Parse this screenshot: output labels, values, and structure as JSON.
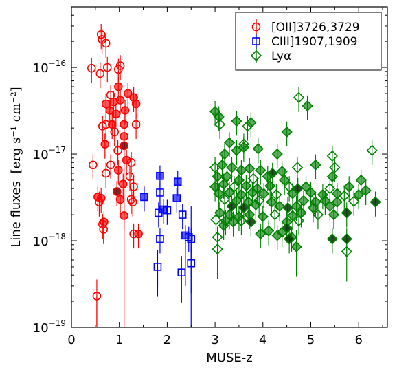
{
  "chart_data": {
    "type": "scatter",
    "xlabel": "MUSE-z",
    "ylabel_main": "Line fluxes",
    "ylabel_units": "[erg s⁻¹ cm⁻²]",
    "xlim": [
      0,
      6.6
    ],
    "ylim": [
      1e-19,
      5e-16
    ],
    "yscale": "log",
    "x_ticks": [
      0,
      1,
      2,
      3,
      4,
      5,
      6
    ],
    "x_tick_labels": [
      "0",
      "1",
      "2",
      "3",
      "4",
      "5",
      "6"
    ],
    "y_ticks": [
      1e-19,
      1e-18,
      1e-17,
      1e-16
    ],
    "y_tick_labels": [
      {
        "base": "10",
        "exp": "−19"
      },
      {
        "base": "10",
        "exp": "−18"
      },
      {
        "base": "10",
        "exp": "−17"
      },
      {
        "base": "10",
        "exp": "−16"
      }
    ],
    "legend_position": "top-right",
    "series": [
      {
        "name": "[OII]3726,3729",
        "color": "#ff0000",
        "marker": "circle",
        "points": [
          {
            "x": 0.62,
            "y": 2.4e-16,
            "f": 0
          },
          {
            "x": 0.64,
            "y": 2.1e-16,
            "f": 0
          },
          {
            "x": 0.72,
            "y": 1.9e-16,
            "f": 0
          },
          {
            "x": 0.42,
            "y": 9.8e-17,
            "f": 0
          },
          {
            "x": 0.6,
            "y": 8.5e-17,
            "f": 0
          },
          {
            "x": 0.75,
            "y": 1e-16,
            "f": 0
          },
          {
            "x": 0.98,
            "y": 9.5e-17,
            "f": 0
          },
          {
            "x": 1.02,
            "y": 1.05e-16,
            "f": 0
          },
          {
            "x": 0.82,
            "y": 4.8e-17,
            "f": 0
          },
          {
            "x": 0.98,
            "y": 6e-17,
            "f": 1
          },
          {
            "x": 1.18,
            "y": 5e-17,
            "f": 1
          },
          {
            "x": 0.72,
            "y": 3.8e-17,
            "f": 1
          },
          {
            "x": 0.88,
            "y": 4e-17,
            "f": 1
          },
          {
            "x": 1.02,
            "y": 4.2e-17,
            "f": 1
          },
          {
            "x": 1.3,
            "y": 4.5e-17,
            "f": 1
          },
          {
            "x": 1.35,
            "y": 3.8e-17,
            "f": 1
          },
          {
            "x": 0.8,
            "y": 3.2e-17,
            "f": 1
          },
          {
            "x": 0.93,
            "y": 2.9e-17,
            "f": 1
          },
          {
            "x": 1.12,
            "y": 3.2e-17,
            "f": 1
          },
          {
            "x": 0.72,
            "y": 2.2e-17,
            "f": 0
          },
          {
            "x": 0.65,
            "y": 2.1e-17,
            "f": 0
          },
          {
            "x": 0.85,
            "y": 2.2e-17,
            "f": 1
          },
          {
            "x": 1.1,
            "y": 2.2e-17,
            "f": 1
          },
          {
            "x": 1.35,
            "y": 2.2e-17,
            "f": 0
          },
          {
            "x": 0.9,
            "y": 1.8e-17,
            "f": 0
          },
          {
            "x": 1.1,
            "y": 1.6e-17,
            "f": 1
          },
          {
            "x": 0.7,
            "y": 1.3e-17,
            "f": 1
          },
          {
            "x": 1.1,
            "y": 1.25e-17,
            "f": 2
          },
          {
            "x": 0.97,
            "y": 1.1e-17,
            "f": 0
          },
          {
            "x": 0.45,
            "y": 7.5e-18,
            "f": 0
          },
          {
            "x": 0.82,
            "y": 7.5e-18,
            "f": 0
          },
          {
            "x": 1.15,
            "y": 8.5e-18,
            "f": 1
          },
          {
            "x": 1.25,
            "y": 8e-18,
            "f": 0
          },
          {
            "x": 0.98,
            "y": 6.5e-18,
            "f": 1
          },
          {
            "x": 0.72,
            "y": 6e-18,
            "f": 0
          },
          {
            "x": 1.22,
            "y": 5.5e-18,
            "f": 0
          },
          {
            "x": 1.08,
            "y": 4.5e-18,
            "f": 1
          },
          {
            "x": 1.3,
            "y": 4.2e-18,
            "f": 0
          },
          {
            "x": 0.95,
            "y": 3.7e-18,
            "f": 2
          },
          {
            "x": 0.55,
            "y": 3.2e-18,
            "f": 1
          },
          {
            "x": 0.62,
            "y": 3.1e-18,
            "f": 1
          },
          {
            "x": 1.02,
            "y": 3e-18,
            "f": 1
          },
          {
            "x": 1.25,
            "y": 3e-18,
            "f": 0
          },
          {
            "x": 0.58,
            "y": 2.8e-18,
            "f": 0
          },
          {
            "x": 1.28,
            "y": 2.8e-18,
            "f": 0
          },
          {
            "x": 1.1,
            "y": 1.95e-18,
            "f": 1
          },
          {
            "x": 0.68,
            "y": 1.65e-18,
            "f": 1
          },
          {
            "x": 0.65,
            "y": 1.55e-18,
            "f": 0
          },
          {
            "x": 0.67,
            "y": 1.35e-18,
            "f": 0
          },
          {
            "x": 1.3,
            "y": 1.2e-18,
            "f": 0
          },
          {
            "x": 1.4,
            "y": 1.2e-18,
            "f": 1
          },
          {
            "x": 0.53,
            "y": 2.3e-19,
            "f": 0
          }
        ]
      },
      {
        "name": "CIII]1907,1909",
        "color": "#0000ff",
        "marker": "square",
        "points": [
          {
            "x": 1.85,
            "y": 5.6e-18,
            "f": 1
          },
          {
            "x": 2.22,
            "y": 4.8e-18,
            "f": 1
          },
          {
            "x": 1.52,
            "y": 3.2e-18,
            "f": 1
          },
          {
            "x": 1.85,
            "y": 3.6e-18,
            "f": 0
          },
          {
            "x": 2.2,
            "y": 3.1e-18,
            "f": 1
          },
          {
            "x": 1.92,
            "y": 2.3e-18,
            "f": 1
          },
          {
            "x": 2.0,
            "y": 2.25e-18,
            "f": 0
          },
          {
            "x": 1.82,
            "y": 2.1e-18,
            "f": 0
          },
          {
            "x": 2.32,
            "y": 2e-18,
            "f": 0
          },
          {
            "x": 2.38,
            "y": 1.15e-18,
            "f": 1
          },
          {
            "x": 2.45,
            "y": 1.1e-18,
            "f": 0
          },
          {
            "x": 2.5,
            "y": 1.05e-18,
            "f": 0
          },
          {
            "x": 1.85,
            "y": 1.05e-18,
            "f": 0
          },
          {
            "x": 2.5,
            "y": 5.5e-19,
            "f": 0
          },
          {
            "x": 1.8,
            "y": 5e-19,
            "f": 0
          },
          {
            "x": 2.3,
            "y": 4.3e-19,
            "f": 0
          }
        ]
      },
      {
        "name": "Lyα",
        "color": "#008000",
        "marker": "diamond",
        "points": [
          {
            "x": 4.75,
            "y": 4.5e-17,
            "f": 0
          },
          {
            "x": 4.93,
            "y": 3.6e-17,
            "f": 1
          },
          {
            "x": 3.0,
            "y": 3.1e-17,
            "f": 1
          },
          {
            "x": 3.08,
            "y": 2.7e-17,
            "f": 1
          },
          {
            "x": 3.45,
            "y": 2.4e-17,
            "f": 1
          },
          {
            "x": 3.1,
            "y": 2.2e-17,
            "f": 0
          },
          {
            "x": 3.75,
            "y": 2.3e-17,
            "f": 1
          },
          {
            "x": 3.68,
            "y": 2.1e-17,
            "f": 0
          },
          {
            "x": 4.5,
            "y": 1.8e-17,
            "f": 1
          },
          {
            "x": 3.3,
            "y": 1.35e-17,
            "f": 1
          },
          {
            "x": 3.6,
            "y": 1.3e-17,
            "f": 0
          },
          {
            "x": 3.45,
            "y": 1.1e-17,
            "f": 1
          },
          {
            "x": 3.2,
            "y": 1e-17,
            "f": 1
          },
          {
            "x": 3.6,
            "y": 1.2e-17,
            "f": 1
          },
          {
            "x": 3.9,
            "y": 1.15e-17,
            "f": 1
          },
          {
            "x": 4.3,
            "y": 1e-17,
            "f": 1
          },
          {
            "x": 5.45,
            "y": 9.5e-18,
            "f": 0
          },
          {
            "x": 6.28,
            "y": 1.1e-17,
            "f": 0
          },
          {
            "x": 3.0,
            "y": 7e-18,
            "f": 0
          },
          {
            "x": 3.15,
            "y": 7.5e-18,
            "f": 1
          },
          {
            "x": 3.35,
            "y": 7e-18,
            "f": 1
          },
          {
            "x": 3.55,
            "y": 6.5e-18,
            "f": 1
          },
          {
            "x": 3.72,
            "y": 6.8e-18,
            "f": 1
          },
          {
            "x": 3.95,
            "y": 6.5e-18,
            "f": 1
          },
          {
            "x": 4.2,
            "y": 6e-18,
            "f": 2
          },
          {
            "x": 4.4,
            "y": 6.3e-18,
            "f": 1
          },
          {
            "x": 4.72,
            "y": 7e-18,
            "f": 0
          },
          {
            "x": 5.1,
            "y": 7.5e-18,
            "f": 1
          },
          {
            "x": 5.5,
            "y": 7e-18,
            "f": 0
          },
          {
            "x": 3.05,
            "y": 5.5e-18,
            "f": 1
          },
          {
            "x": 3.25,
            "y": 5.5e-18,
            "f": 1
          },
          {
            "x": 3.5,
            "y": 5e-18,
            "f": 1
          },
          {
            "x": 3.8,
            "y": 5.2e-18,
            "f": 0
          },
          {
            "x": 4.1,
            "y": 5.5e-18,
            "f": 1
          },
          {
            "x": 4.45,
            "y": 5e-18,
            "f": 1
          },
          {
            "x": 5.45,
            "y": 5.5e-18,
            "f": 1
          },
          {
            "x": 6.05,
            "y": 5e-18,
            "f": 1
          },
          {
            "x": 3.0,
            "y": 4.2e-18,
            "f": 1
          },
          {
            "x": 3.18,
            "y": 4.5e-18,
            "f": 1
          },
          {
            "x": 3.4,
            "y": 4.2e-18,
            "f": 0
          },
          {
            "x": 3.65,
            "y": 4.3e-18,
            "f": 1
          },
          {
            "x": 3.88,
            "y": 4e-18,
            "f": 1
          },
          {
            "x": 4.15,
            "y": 4.3e-18,
            "f": 1
          },
          {
            "x": 4.55,
            "y": 4.2e-18,
            "f": 0
          },
          {
            "x": 4.73,
            "y": 4e-18,
            "f": 2
          },
          {
            "x": 4.9,
            "y": 4.2e-18,
            "f": 1
          },
          {
            "x": 5.4,
            "y": 4e-18,
            "f": 0
          },
          {
            "x": 5.8,
            "y": 4.2e-18,
            "f": 1
          },
          {
            "x": 6.15,
            "y": 3.8e-18,
            "f": 1
          },
          {
            "x": 3.08,
            "y": 3.5e-18,
            "f": 1
          },
          {
            "x": 3.3,
            "y": 3.6e-18,
            "f": 1
          },
          {
            "x": 3.55,
            "y": 3.4e-18,
            "f": 1
          },
          {
            "x": 3.78,
            "y": 3.6e-18,
            "f": 1
          },
          {
            "x": 4.02,
            "y": 3.5e-18,
            "f": 1
          },
          {
            "x": 4.28,
            "y": 3.4e-18,
            "f": 0
          },
          {
            "x": 4.62,
            "y": 3.5e-18,
            "f": 1
          },
          {
            "x": 5.0,
            "y": 3.6e-18,
            "f": 1
          },
          {
            "x": 5.25,
            "y": 3.4e-18,
            "f": 1
          },
          {
            "x": 5.55,
            "y": 3.5e-18,
            "f": 1
          },
          {
            "x": 5.7,
            "y": 3.3e-18,
            "f": 0
          },
          {
            "x": 6.0,
            "y": 3.4e-18,
            "f": 1
          },
          {
            "x": 3.2,
            "y": 3e-18,
            "f": 0
          },
          {
            "x": 3.45,
            "y": 2.9e-18,
            "f": 1
          },
          {
            "x": 3.7,
            "y": 2.8e-18,
            "f": 1
          },
          {
            "x": 3.92,
            "y": 2.9e-18,
            "f": 0
          },
          {
            "x": 4.18,
            "y": 2.8e-18,
            "f": 1
          },
          {
            "x": 4.85,
            "y": 2.9e-18,
            "f": 1
          },
          {
            "x": 5.1,
            "y": 2.8e-18,
            "f": 1
          },
          {
            "x": 5.3,
            "y": 2.9e-18,
            "f": 1
          },
          {
            "x": 5.55,
            "y": 2.8e-18,
            "f": 1
          },
          {
            "x": 5.9,
            "y": 2.85e-18,
            "f": 0
          },
          {
            "x": 6.35,
            "y": 2.8e-18,
            "f": 2
          },
          {
            "x": 3.35,
            "y": 2.5e-18,
            "f": 2
          },
          {
            "x": 3.6,
            "y": 2.4e-18,
            "f": 2
          },
          {
            "x": 3.85,
            "y": 2.6e-18,
            "f": 1
          },
          {
            "x": 4.35,
            "y": 2.5e-18,
            "f": 1
          },
          {
            "x": 4.52,
            "y": 2.4e-18,
            "f": 2
          },
          {
            "x": 4.7,
            "y": 2.5e-18,
            "f": 1
          },
          {
            "x": 5.05,
            "y": 2.4e-18,
            "f": 1
          },
          {
            "x": 5.4,
            "y": 2.5e-18,
            "f": 1
          },
          {
            "x": 3.1,
            "y": 2.1e-18,
            "f": 1
          },
          {
            "x": 3.3,
            "y": 2e-18,
            "f": 1
          },
          {
            "x": 3.5,
            "y": 1.9e-18,
            "f": 1
          },
          {
            "x": 3.72,
            "y": 2e-18,
            "f": 1
          },
          {
            "x": 4.0,
            "y": 1.9e-18,
            "f": 1
          },
          {
            "x": 4.25,
            "y": 2e-18,
            "f": 0
          },
          {
            "x": 4.62,
            "y": 1.95e-18,
            "f": 1
          },
          {
            "x": 4.8,
            "y": 2.1e-18,
            "f": 1
          },
          {
            "x": 5.15,
            "y": 2e-18,
            "f": 0
          },
          {
            "x": 5.48,
            "y": 2e-18,
            "f": 1
          },
          {
            "x": 5.75,
            "y": 2.1e-18,
            "f": 2
          },
          {
            "x": 3.02,
            "y": 1.75e-18,
            "f": 0
          },
          {
            "x": 3.22,
            "y": 1.7e-18,
            "f": 1
          },
          {
            "x": 3.38,
            "y": 1.65e-18,
            "f": 1
          },
          {
            "x": 3.55,
            "y": 1.7e-18,
            "f": 0
          },
          {
            "x": 3.75,
            "y": 1.65e-18,
            "f": 2
          },
          {
            "x": 4.5,
            "y": 1.65e-18,
            "f": 1
          },
          {
            "x": 4.75,
            "y": 1.7e-18,
            "f": 0
          },
          {
            "x": 3.18,
            "y": 1.5e-18,
            "f": 1
          },
          {
            "x": 4.5,
            "y": 1.4e-18,
            "f": 2
          },
          {
            "x": 4.12,
            "y": 1.3e-18,
            "f": 1
          },
          {
            "x": 4.4,
            "y": 1.25e-18,
            "f": 1
          },
          {
            "x": 3.95,
            "y": 1.2e-18,
            "f": 1
          },
          {
            "x": 4.3,
            "y": 1.15e-18,
            "f": 1
          },
          {
            "x": 4.6,
            "y": 1.1e-18,
            "f": 1
          },
          {
            "x": 3.05,
            "y": 1.1e-18,
            "f": 0
          },
          {
            "x": 4.55,
            "y": 1.05e-18,
            "f": 2
          },
          {
            "x": 5.45,
            "y": 1.05e-18,
            "f": 2
          },
          {
            "x": 5.75,
            "y": 1.05e-18,
            "f": 2
          },
          {
            "x": 4.7,
            "y": 8.5e-19,
            "f": 1
          },
          {
            "x": 3.05,
            "y": 8e-19,
            "f": 0
          },
          {
            "x": 5.75,
            "y": 7.5e-19,
            "f": 0
          }
        ]
      }
    ]
  }
}
